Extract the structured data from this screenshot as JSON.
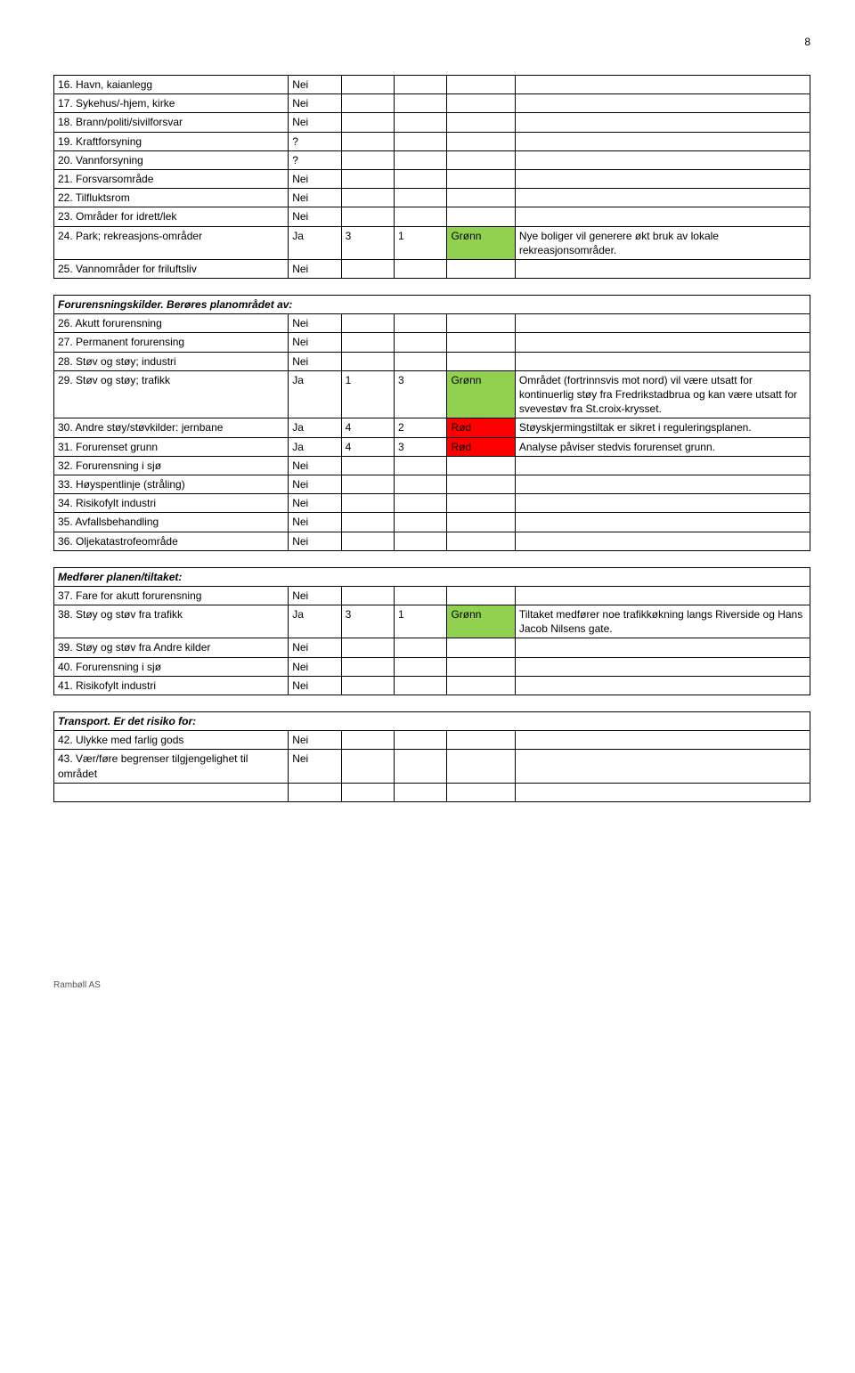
{
  "page_number": "8",
  "footer": "Rambøll AS",
  "cellValues": {
    "Nei": "Nei",
    "Ja": "Ja",
    "q": "?"
  },
  "colors": {
    "green_bg": "#92d050",
    "red_bg": "#ff0000",
    "Grønn": "Grønn",
    "Rød": "Rød"
  },
  "section1": {
    "rows": [
      {
        "label": "16. Havn, kaianlegg",
        "yn": "Nei"
      },
      {
        "label": "17. Sykehus/-hjem, kirke",
        "yn": "Nei"
      },
      {
        "label": "18. Brann/politi/sivilforsvar",
        "yn": "Nei"
      },
      {
        "label": "19. Kraftforsyning",
        "yn": "?"
      },
      {
        "label": "20. Vannforsyning",
        "yn": "?"
      },
      {
        "label": "21. Forsvarsområde",
        "yn": "Nei"
      },
      {
        "label": "22. Tilfluktsrom",
        "yn": "Nei"
      },
      {
        "label": "23. Områder for idrett/lek",
        "yn": "Nei"
      },
      {
        "label": "24. Park; rekreasjons-områder",
        "yn": "Ja",
        "n1": "3",
        "n2": "1",
        "color": "Grønn",
        "color_class": "green",
        "note": "Nye boliger vil generere økt bruk av lokale rekreasjonsområder."
      },
      {
        "label": "25. Vannområder for friluftsliv",
        "yn": "Nei"
      }
    ]
  },
  "section2": {
    "header": "Forurensningskilder. Berøres planområdet av:",
    "rows": [
      {
        "label": "26. Akutt forurensning",
        "yn": "Nei"
      },
      {
        "label": "27. Permanent forurensing",
        "yn": "Nei"
      },
      {
        "label": "28. Støv og støy; industri",
        "yn": "Nei"
      },
      {
        "label": "29. Støv og støy; trafikk",
        "yn": "Ja",
        "n1": "1",
        "n2": "3",
        "color": "Grønn",
        "color_class": "green",
        "note": "Området (fortrinnsvis mot nord) vil være utsatt for kontinuerlig støy fra Fredrikstadbrua og kan være utsatt for svevestøv fra St.croix-krysset."
      },
      {
        "label": "30. Andre støy/støvkilder: jernbane",
        "yn": "Ja",
        "n1": "4",
        "n2": "2",
        "color": "Rød",
        "color_class": "red",
        "note": "Støyskjermingstiltak er sikret i reguleringsplanen."
      },
      {
        "label": "31. Forurenset grunn",
        "yn": "Ja",
        "n1": "4",
        "n2": "3",
        "color": "Rød",
        "color_class": "red",
        "note": "Analyse påviser stedvis forurenset grunn."
      },
      {
        "label": "32. Forurensning i sjø",
        "yn": "Nei"
      },
      {
        "label": "33. Høyspentlinje (stråling)",
        "yn": "Nei"
      },
      {
        "label": "34. Risikofylt industri",
        "yn": "Nei"
      },
      {
        "label": "35. Avfallsbehandling",
        "yn": "Nei"
      },
      {
        "label": "36. Oljekatastrofeområde",
        "yn": "Nei"
      }
    ]
  },
  "section3": {
    "header": "Medfører planen/tiltaket:",
    "rows": [
      {
        "label": "37. Fare for akutt forurensning",
        "yn": "Nei"
      },
      {
        "label": "38. Støy og støv fra trafikk",
        "yn": "Ja",
        "n1": "3",
        "n2": "1",
        "color": "Grønn",
        "color_class": "green",
        "note": "Tiltaket medfører noe trafikkøkning langs Riverside og Hans Jacob Nilsens gate."
      },
      {
        "label": "39. Støy og støv fra Andre kilder",
        "yn": "Nei"
      },
      {
        "label": "40. Forurensning i sjø",
        "yn": "Nei"
      },
      {
        "label": "41. Risikofylt industri",
        "yn": "Nei"
      }
    ]
  },
  "section4": {
    "header": "Transport. Er det risiko for:",
    "rows": [
      {
        "label": "42. Ulykke med farlig gods",
        "yn": "Nei"
      },
      {
        "label": "43. Vær/føre begrenser tilgjengelighet til området",
        "yn": "Nei"
      }
    ],
    "trailing_empty_row": true
  }
}
